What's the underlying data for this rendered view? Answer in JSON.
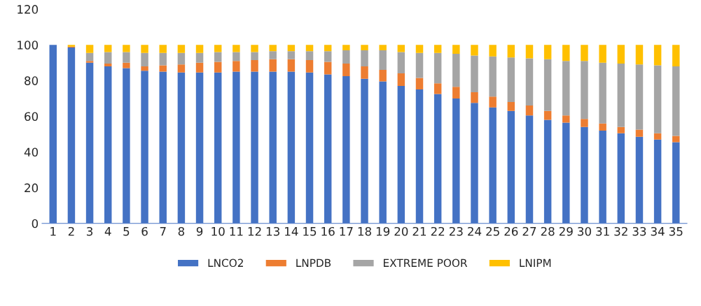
{
  "chart_data": {
    "type": "bar",
    "stacked": true,
    "categories": [
      "1",
      "2",
      "3",
      "4",
      "5",
      "6",
      "7",
      "8",
      "9",
      "10",
      "11",
      "12",
      "13",
      "14",
      "15",
      "16",
      "17",
      "18",
      "19",
      "20",
      "21",
      "22",
      "23",
      "24",
      "25",
      "26",
      "27",
      "28",
      "29",
      "30",
      "31",
      "32",
      "33",
      "34",
      "35"
    ],
    "ylim": [
      0,
      120
    ],
    "yticks": [
      0,
      20,
      40,
      60,
      80,
      100,
      120
    ],
    "grid": false,
    "legend": "bottom",
    "series": [
      {
        "name": "LNCO2",
        "color": "#4472c4",
        "values": [
          100,
          98.5,
          90,
          88,
          87,
          85.5,
          85,
          84.5,
          84.5,
          84.5,
          85,
          85,
          85,
          85,
          84.5,
          83.5,
          82.5,
          81,
          79.5,
          77,
          75,
          72.5,
          70,
          67.5,
          65,
          63,
          60.5,
          58,
          56.5,
          54,
          52,
          50.5,
          48.5,
          47,
          45.5
        ]
      },
      {
        "name": "LNPDB",
        "color": "#ed7d31",
        "values": [
          0,
          0.5,
          1,
          1.5,
          3,
          2.5,
          3.5,
          4.5,
          5.5,
          6,
          6,
          6.5,
          7,
          7,
          7,
          7,
          7,
          7,
          6.5,
          7,
          6.5,
          6,
          6.5,
          6,
          6,
          5,
          5.5,
          5,
          4,
          4.5,
          4,
          3.5,
          4,
          3.5,
          3.5
        ]
      },
      {
        "name": "EXTREME POOR",
        "color": "#a5a5a5",
        "values": [
          0,
          null,
          4.5,
          6.5,
          6,
          7.5,
          7,
          6.5,
          5.5,
          5.5,
          5,
          4.5,
          4.5,
          4.5,
          5,
          6,
          7.5,
          9,
          11,
          12,
          14,
          17,
          18.5,
          20.5,
          22.5,
          25,
          26.5,
          29,
          30.5,
          32.5,
          34,
          35.5,
          36.5,
          38,
          39
        ]
      },
      {
        "name": "LNIPM",
        "color": "#ffc000",
        "values": [
          0,
          1,
          4.5,
          4,
          4,
          4.5,
          4.5,
          4.5,
          4.5,
          4,
          4,
          4,
          3.5,
          3.5,
          3.5,
          3.5,
          3,
          3,
          3,
          4,
          4.5,
          4.5,
          5,
          6,
          6.5,
          7,
          7.5,
          8,
          9,
          9,
          10,
          10.5,
          11,
          11.5,
          12
        ]
      }
    ]
  }
}
